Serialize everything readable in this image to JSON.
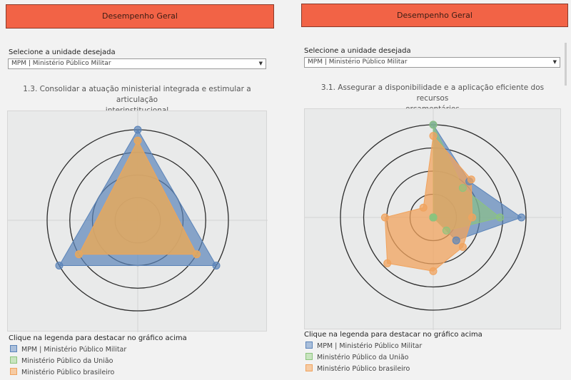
{
  "colors": {
    "header_bg": "#f26346",
    "series": [
      "#5b84b9",
      "#8cc47d",
      "#f0a35e"
    ],
    "ring": "#2b2b2b",
    "frame_bg": "#e9eaea"
  },
  "left": {
    "header_label": "Desempenho Geral",
    "select_label": "Selecione a unidade desejada",
    "select_value": "MPM | Ministério Público Militar",
    "title_line1": "1.3. Consolidar a atuação ministerial integrada e estimular a articulação",
    "title_line2": "interinstitucional",
    "legend_title": "Clique na legenda para destacar no gráfico acima",
    "legend": [
      "MPM | Ministério Público Militar",
      "Ministério Público da União",
      "Ministério Público brasileiro"
    ]
  },
  "right": {
    "header_label": "Desempenho Geral",
    "select_label": "Selecione a unidade desejada",
    "select_value": "MPM | Ministério Público Militar",
    "title_line1": "3.1. Assegurar a disponibilidade e a aplicação eficiente dos recursos",
    "title_line2": "orçamentários",
    "legend_title": "Clique na legenda para destacar no gráfico acima",
    "legend": [
      "MPM | Ministério Público Militar",
      "Ministério Público da União",
      "Ministério Público brasileiro"
    ]
  },
  "chart_data": [
    {
      "type": "radar",
      "axes": 3,
      "rmax": 1.0,
      "rings": 4,
      "series": [
        {
          "values": [
            1.0,
            1.0,
            1.0
          ]
        },
        {
          "values": [
            0.88,
            0.75,
            0.75
          ]
        },
        {
          "values": [
            0.88,
            0.75,
            0.75
          ]
        }
      ]
    },
    {
      "type": "radar",
      "axes": 8,
      "rmax": 1.0,
      "rings": 4,
      "series": [
        {
          "values": [
            1.0,
            0.55,
            0.95,
            0.35,
            0.0,
            0.0,
            0.0,
            0.0
          ]
        },
        {
          "values": [
            1.0,
            0.45,
            0.72,
            0.2,
            0.0,
            0.0,
            0.0,
            0.0
          ]
        },
        {
          "values": [
            0.88,
            0.58,
            0.42,
            0.45,
            0.58,
            0.7,
            0.52,
            0.15
          ]
        }
      ]
    }
  ]
}
